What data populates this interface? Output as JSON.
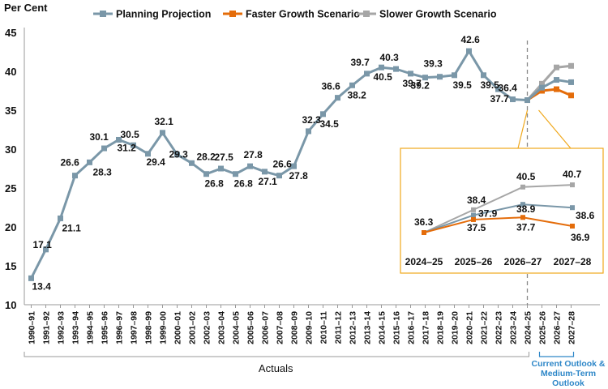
{
  "chart_data": {
    "type": "line",
    "ylabel": "Per Cent",
    "ylim": [
      10,
      45
    ],
    "yticks": [
      10,
      15,
      20,
      25,
      30,
      35,
      40,
      45
    ],
    "categories": [
      "1990–91",
      "1991–92",
      "1992–93",
      "1993–94",
      "1994–95",
      "1995–96",
      "1996–97",
      "1997–98",
      "1998–99",
      "1999–00",
      "2000–01",
      "2001–02",
      "2002–03",
      "2003–04",
      "2004–05",
      "2005–06",
      "2006–07",
      "2007–08",
      "2008–09",
      "2009–10",
      "2010–11",
      "2011–12",
      "2012–13",
      "2013–14",
      "2014–15",
      "2015–16",
      "2016–17",
      "2017–18",
      "2018–19",
      "2019–20",
      "2020–21",
      "2021–22",
      "2022–23",
      "2023–24",
      "2024–25",
      "2025–26",
      "2026–27",
      "2027–28"
    ],
    "series": [
      {
        "name": "Planning Projection",
        "color": "#7a97a8",
        "values": [
          13.4,
          17.1,
          21.1,
          26.6,
          28.3,
          30.1,
          31.2,
          30.5,
          29.4,
          32.1,
          29.3,
          28.2,
          26.8,
          27.5,
          26.8,
          27.8,
          27.1,
          26.6,
          27.8,
          32.3,
          34.5,
          36.6,
          38.2,
          39.7,
          40.5,
          40.3,
          39.7,
          39.2,
          39.3,
          39.5,
          42.6,
          39.5,
          37.7,
          36.4,
          36.3,
          37.9,
          38.9,
          38.6
        ]
      },
      {
        "name": "Faster Growth Scenario",
        "color": "#e46c0a",
        "values": [
          null,
          null,
          null,
          null,
          null,
          null,
          null,
          null,
          null,
          null,
          null,
          null,
          null,
          null,
          null,
          null,
          null,
          null,
          null,
          null,
          null,
          null,
          null,
          null,
          null,
          null,
          null,
          null,
          null,
          null,
          null,
          null,
          null,
          null,
          36.3,
          37.5,
          37.7,
          36.9
        ]
      },
      {
        "name": "Slower Growth Scenario",
        "color": "#a6a6a6",
        "values": [
          null,
          null,
          null,
          null,
          null,
          null,
          null,
          null,
          null,
          null,
          null,
          null,
          null,
          null,
          null,
          null,
          null,
          null,
          null,
          null,
          null,
          null,
          null,
          null,
          null,
          null,
          null,
          null,
          null,
          null,
          null,
          null,
          null,
          null,
          36.3,
          38.4,
          40.5,
          40.7
        ]
      }
    ],
    "data_labels": [
      "13.4",
      "17.1",
      "21.1",
      "26.6",
      "28.3",
      "30.1",
      "31.2",
      "30.5",
      "29.4",
      "32.1",
      "29.3",
      "28.2",
      "26.8",
      "27.5",
      "26.8",
      "27.8",
      "27.1",
      "26.6",
      "27.8",
      "32.3",
      "34.5",
      "36.6",
      "38.2",
      "39.7",
      "40.5",
      "40.3",
      "39.7",
      "39.2",
      "39.3",
      "39.5",
      "42.6",
      "39.5",
      "37.7",
      "36.4"
    ],
    "inset": {
      "categories": [
        "2024–25",
        "2025–26",
        "2026–27",
        "2027–28"
      ],
      "labels": {
        "start": "36.3",
        "planning": [
          "37.9",
          "38.9",
          "38.6"
        ],
        "faster": [
          "37.5",
          "37.7",
          "36.9"
        ],
        "slower": [
          "38.4",
          "40.5",
          "40.7"
        ]
      }
    },
    "annotations": {
      "actuals": "Actuals",
      "outlook": [
        "Current Outlook &",
        "Medium-Term",
        "Outlook"
      ]
    },
    "legend": [
      "Planning Projection",
      "Faster Growth Scenario",
      "Slower Growth Scenario"
    ],
    "inset_border_color": "#f0a81c",
    "outlook_color": "#2e87c8"
  }
}
